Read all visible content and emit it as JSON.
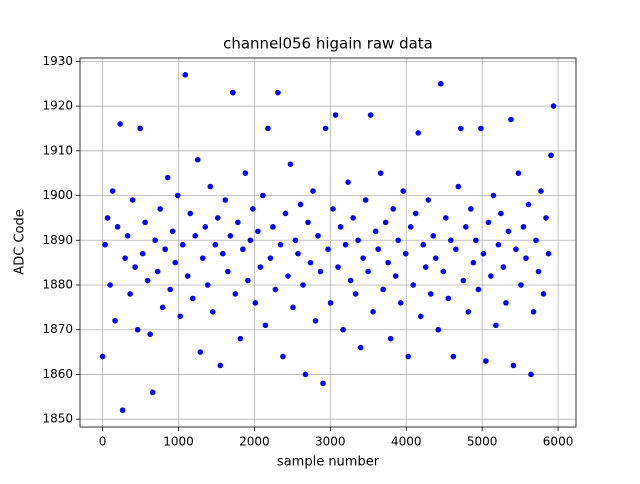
{
  "chart_data": {
    "type": "scatter",
    "title": "channel056 higain raw data",
    "xlabel": "sample number",
    "ylabel": "ADC Code",
    "color": "#0000ff",
    "grid": true,
    "xlim": [
      -297,
      6236
    ],
    "ylim": [
      1848.25,
      1930.75
    ],
    "xticks": [
      0,
      1000,
      2000,
      3000,
      4000,
      5000,
      6000
    ],
    "yticks": [
      1850,
      1860,
      1870,
      1880,
      1890,
      1900,
      1910,
      1920,
      1930
    ],
    "x": [
      0,
      33,
      66,
      99,
      132,
      165,
      198,
      231,
      264,
      297,
      330,
      363,
      396,
      429,
      462,
      495,
      528,
      561,
      594,
      627,
      660,
      693,
      726,
      759,
      792,
      825,
      858,
      891,
      924,
      957,
      990,
      1023,
      1056,
      1089,
      1122,
      1155,
      1188,
      1221,
      1254,
      1287,
      1320,
      1353,
      1386,
      1419,
      1452,
      1485,
      1518,
      1551,
      1584,
      1617,
      1650,
      1683,
      1716,
      1749,
      1782,
      1815,
      1848,
      1881,
      1914,
      1947,
      1980,
      2013,
      2046,
      2079,
      2112,
      2145,
      2178,
      2211,
      2244,
      2277,
      2310,
      2343,
      2376,
      2409,
      2442,
      2475,
      2508,
      2541,
      2574,
      2607,
      2640,
      2673,
      2706,
      2739,
      2772,
      2805,
      2838,
      2871,
      2904,
      2937,
      2970,
      3003,
      3036,
      3069,
      3102,
      3135,
      3168,
      3201,
      3234,
      3267,
      3300,
      3333,
      3366,
      3399,
      3432,
      3465,
      3498,
      3531,
      3564,
      3597,
      3630,
      3663,
      3696,
      3729,
      3762,
      3795,
      3828,
      3861,
      3894,
      3927,
      3960,
      3993,
      4026,
      4059,
      4092,
      4125,
      4158,
      4191,
      4224,
      4257,
      4290,
      4323,
      4356,
      4389,
      4422,
      4455,
      4488,
      4521,
      4554,
      4587,
      4620,
      4653,
      4686,
      4719,
      4752,
      4785,
      4818,
      4851,
      4884,
      4917,
      4950,
      4983,
      5016,
      5049,
      5082,
      5115,
      5148,
      5181,
      5214,
      5247,
      5280,
      5313,
      5346,
      5379,
      5412,
      5445,
      5478,
      5511,
      5544,
      5577,
      5610,
      5643,
      5676,
      5709,
      5742,
      5775,
      5808,
      5841,
      5874,
      5907,
      5940
    ],
    "values": [
      1864,
      1889,
      1895,
      1880,
      1901,
      1872,
      1893,
      1916,
      1852,
      1886,
      1891,
      1878,
      1899,
      1884,
      1870,
      1915,
      1887,
      1894,
      1881,
      1869,
      1856,
      1890,
      1883,
      1897,
      1875,
      1888,
      1904,
      1879,
      1892,
      1885,
      1900,
      1873,
      1889,
      1927,
      1882,
      1896,
      1877,
      1891,
      1908,
      1865,
      1886,
      1893,
      1880,
      1902,
      1874,
      1889,
      1895,
      1862,
      1887,
      1899,
      1883,
      1891,
      1923,
      1878,
      1894,
      1868,
      1888,
      1905,
      1881,
      1890,
      1897,
      1876,
      1892,
      1884,
      1900,
      1871,
      1915,
      1886,
      1893,
      1879,
      1923,
      1889,
      1864,
      1896,
      1882,
      1907,
      1875,
      1890,
      1887,
      1898,
      1880,
      1860,
      1894,
      1885,
      1901,
      1872,
      1891,
      1883,
      1858,
      1915,
      1888,
      1876,
      1897,
      1918,
      1884,
      1893,
      1870,
      1889,
      1903,
      1881,
      1895,
      1878,
      1890,
      1866,
      1886,
      1899,
      1883,
      1918,
      1874,
      1892,
      1888,
      1905,
      1879,
      1894,
      1885,
      1868,
      1897,
      1882,
      1890,
      1876,
      1901,
      1887,
      1864,
      1893,
      1880,
      1896,
      1914,
      1873,
      1889,
      1884,
      1899,
      1878,
      1891,
      1886,
      1870,
      1925,
      1883,
      1895,
      1877,
      1890,
      1864,
      1888,
      1902,
      1915,
      1881,
      1893,
      1874,
      1897,
      1885,
      1890,
      1879,
      1915,
      1887,
      1863,
      1894,
      1882,
      1900,
      1871,
      1889,
      1896,
      1884,
      1876,
      1892,
      1917,
      1862,
      1888,
      1905,
      1880,
      1893,
      1886,
      1898,
      1860,
      1874,
      1890,
      1883,
      1901,
      1878,
      1895,
      1887,
      1909,
      1920
    ]
  }
}
